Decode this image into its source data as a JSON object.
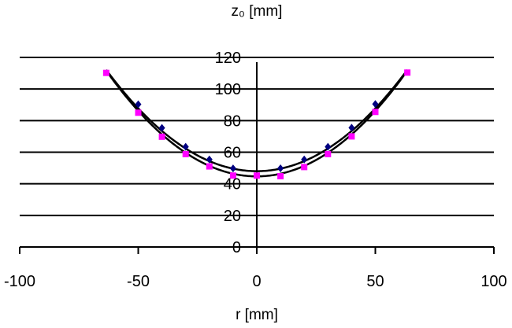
{
  "chart_data": {
    "type": "scatter",
    "title": "z₀ [mm]",
    "xlabel": "r [mm]",
    "ylabel": "",
    "xlim": [
      -100,
      100
    ],
    "ylim": [
      0,
      120
    ],
    "xticks": [
      -100,
      -50,
      0,
      50,
      100
    ],
    "yticks": [
      0,
      20,
      40,
      60,
      80,
      100,
      120
    ],
    "xtick_labels": [
      "-100",
      "-50",
      "0",
      "50",
      "100"
    ],
    "ytick_labels": [
      "0",
      "20",
      "40",
      "60",
      "80",
      "100",
      "120"
    ],
    "grid": "horizontal",
    "legend": "none",
    "series": [
      {
        "marker": "diamond",
        "color": "#000080",
        "x": [
          -50,
          -40,
          -30,
          -20,
          -10,
          10,
          20,
          30,
          40,
          50
        ],
        "y": [
          90.3,
          75.4,
          63.4,
          55.4,
          49.7,
          49.8,
          55.4,
          63.4,
          75.5,
          90.5
        ]
      },
      {
        "marker": "square",
        "color": "#ff00ff",
        "x": [
          -63.5,
          -50,
          -40,
          -30,
          -20,
          -10,
          0,
          10,
          20,
          30,
          40,
          50,
          63.5
        ],
        "y": [
          110.2,
          85,
          69.8,
          58.8,
          51,
          45.2,
          45.2,
          44.8,
          50.6,
          58.8,
          70,
          85.5,
          110.4
        ]
      }
    ],
    "trendlines": [
      {
        "type": "quadratic",
        "color": "#000000",
        "c0": 48,
        "c2": 0.0159,
        "x_range": [
          -63.5,
          63.5
        ]
      },
      {
        "type": "quadratic",
        "color": "#000000",
        "c0": 44.7,
        "c2": 0.0166,
        "x_range": [
          -63.5,
          63.5
        ]
      }
    ]
  }
}
